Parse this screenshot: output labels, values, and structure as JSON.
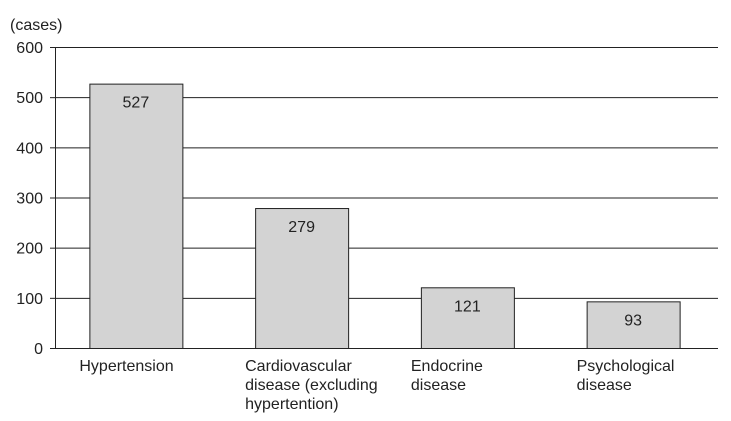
{
  "chart_data": {
    "type": "bar",
    "ylabel": "(cases)",
    "ylim": [
      0,
      600
    ],
    "yticks": [
      0,
      100,
      200,
      300,
      400,
      500,
      600
    ],
    "categories": [
      [
        "Hypertension"
      ],
      [
        "Cardiovascular",
        "disease (excluding",
        "hypertention)"
      ],
      [
        "Endocrine",
        "disease"
      ],
      [
        "Psychological",
        "disease"
      ]
    ],
    "values": [
      527,
      279,
      121,
      93
    ],
    "grid": true,
    "bar_color": "#d3d3d3",
    "bar_stroke": "#222222",
    "axis_color": "#222222"
  }
}
